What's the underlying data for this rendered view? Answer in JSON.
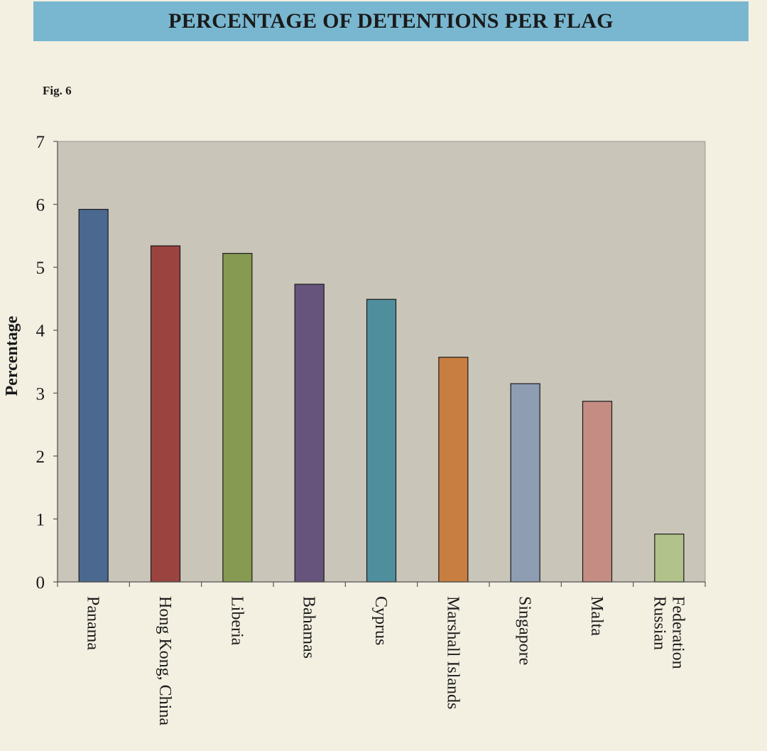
{
  "header": {
    "title": "PERCENTAGE OF DETENTIONS PER FLAG"
  },
  "figure": {
    "label": "Fig. 6"
  },
  "chart_data": {
    "type": "bar",
    "title": "PERCENTAGE OF DETENTIONS PER FLAG",
    "xlabel": "",
    "ylabel": "Percentage",
    "ylim": [
      0,
      7
    ],
    "yticks": [
      0,
      1,
      2,
      3,
      4,
      5,
      6,
      7
    ],
    "grid": false,
    "legend": "none",
    "categories": [
      [
        "Panama"
      ],
      [
        "Hong Kong, China"
      ],
      [
        "Liberia"
      ],
      [
        "Bahamas"
      ],
      [
        "Cyprus"
      ],
      [
        "Marshall Islands"
      ],
      [
        "Singapore"
      ],
      [
        "Malta"
      ],
      [
        "Russian",
        "Federation"
      ]
    ],
    "values": [
      5.92,
      5.34,
      5.22,
      4.73,
      4.49,
      3.57,
      3.15,
      2.87,
      0.76
    ],
    "colors": [
      "#4a6890",
      "#9b433f",
      "#869a52",
      "#66547c",
      "#4f8e9c",
      "#c97e41",
      "#8f9db3",
      "#c48c82",
      "#b1c28a"
    ],
    "plot_background": "#c9c5b9"
  }
}
